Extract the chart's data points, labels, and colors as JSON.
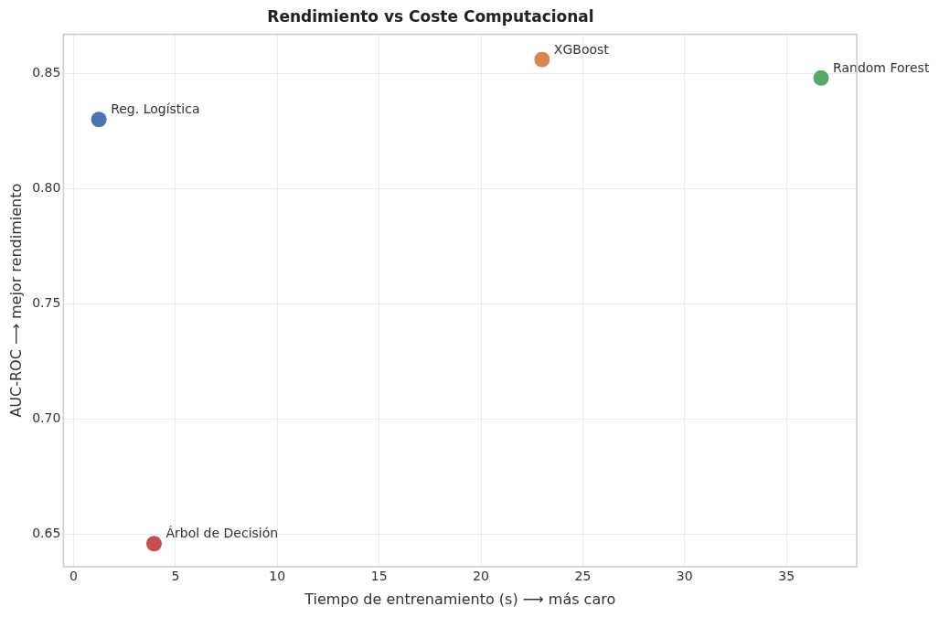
{
  "chart_data": {
    "type": "scatter",
    "title": "Rendimiento vs Coste Computacional",
    "xlabel": "Tiempo de entrenamiento (s) ⟶ más caro",
    "ylabel": "AUC-ROC ⟶ mejor rendimiento",
    "series": [
      {
        "name": "Reg. Logística",
        "color": "#4c72b0",
        "x": [
          1.24
        ],
        "values": [
          0.83
        ]
      },
      {
        "name": "XGBoost",
        "color": "#dd8452",
        "x": [
          23.0
        ],
        "values": [
          0.856
        ]
      },
      {
        "name": "Random Forest",
        "color": "#55a868",
        "x": [
          36.7
        ],
        "values": [
          0.848
        ]
      },
      {
        "name": "Árbol de Decisión",
        "color": "#c44e52",
        "x": [
          3.95
        ],
        "values": [
          0.646
        ]
      }
    ],
    "xlim": [
      -0.5,
      38.45
    ],
    "ylim": [
      0.636,
      0.867
    ],
    "xticks": [
      0,
      5,
      10,
      15,
      20,
      25,
      30,
      35
    ],
    "yticks": [
      {
        "value": 0.65,
        "label": "0.65"
      },
      {
        "value": 0.7,
        "label": "0.70"
      },
      {
        "value": 0.75,
        "label": "0.75"
      },
      {
        "value": 0.8,
        "label": "0.80"
      },
      {
        "value": 0.85,
        "label": "0.85"
      }
    ],
    "grid": true,
    "legend": false,
    "marker": "circle"
  }
}
